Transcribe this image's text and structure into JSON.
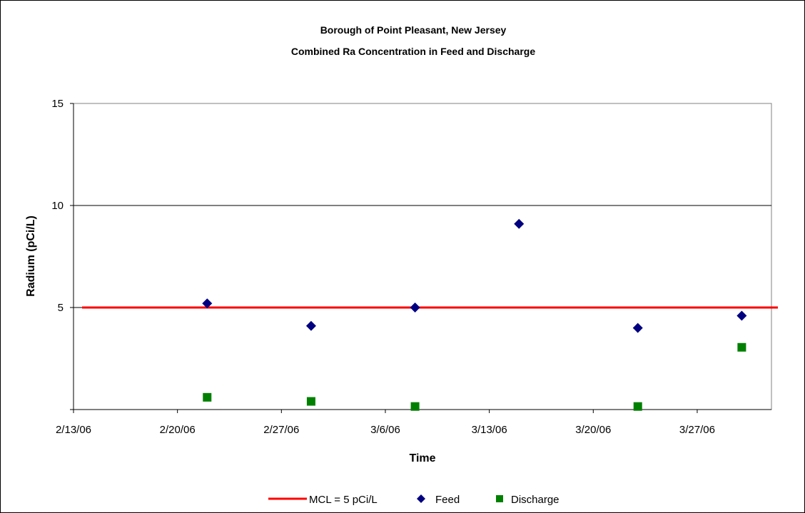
{
  "chart_data": {
    "type": "scatter",
    "title": "Borough of Point Pleasant, New Jersey",
    "subtitle": "Combined Ra Concentration in Feed and Discharge",
    "xlabel": "Time",
    "ylabel": "Radium (pCi/L)",
    "x_ticks": [
      "2/13/06",
      "2/20/06",
      "2/27/06",
      "3/6/06",
      "3/13/06",
      "3/20/06",
      "3/27/06"
    ],
    "xlim": [
      "2006-02-13",
      "2006-04-01"
    ],
    "y_ticks": [
      "",
      "5",
      "10",
      "15"
    ],
    "ylim": [
      0,
      15
    ],
    "grid": "horizontal major gridlines",
    "legend_position": "bottom",
    "reference_line": {
      "name": "MCL = 5 pCi/L",
      "value": 5,
      "color": "#ff0000"
    },
    "series": [
      {
        "name": "Feed",
        "marker": "diamond",
        "color": "#000080",
        "points": [
          {
            "x": "2006-02-22",
            "y": 5.2
          },
          {
            "x": "2006-03-01",
            "y": 4.1
          },
          {
            "x": "2006-03-08",
            "y": 5.0
          },
          {
            "x": "2006-03-15",
            "y": 9.1
          },
          {
            "x": "2006-03-23",
            "y": 4.0
          },
          {
            "x": "2006-03-30",
            "y": 4.6
          }
        ]
      },
      {
        "name": "Discharge",
        "marker": "square",
        "color": "#008000",
        "points": [
          {
            "x": "2006-02-22",
            "y": 0.6
          },
          {
            "x": "2006-03-01",
            "y": 0.4
          },
          {
            "x": "2006-03-08",
            "y": 0.15
          },
          {
            "x": "2006-03-23",
            "y": 0.15
          },
          {
            "x": "2006-03-30",
            "y": 3.05
          }
        ]
      }
    ]
  }
}
